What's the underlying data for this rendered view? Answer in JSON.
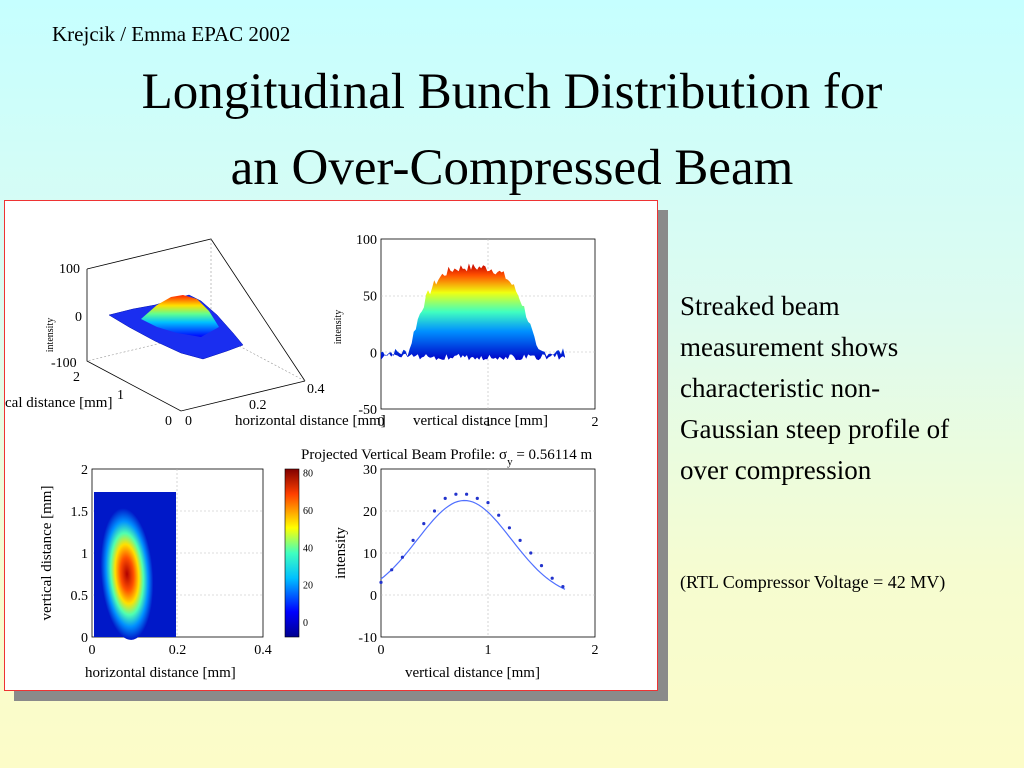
{
  "slide": {
    "author": "Krejcik / Emma   EPAC 2002",
    "title_line1": "Longitudinal Bunch Distribution for",
    "title_line2": "an Over-Compressed Beam",
    "description_lines": [
      "Streaked beam",
      "measurement shows",
      "characteristic non-",
      "Gaussian steep profile of",
      "over compression"
    ],
    "note": "(RTL Compressor Voltage = 42 MV)"
  },
  "colors": {
    "accent_frame": "#e33333",
    "plot_blue": "#2233cc"
  },
  "chart_data": [
    {
      "type": "surface",
      "zlabel": "intensity",
      "xlabel": "horizontal distance [mm]",
      "ylabel": "vertical distance [mm]",
      "xlabel_visible": "horizontal distance [mm]",
      "ylabel_visible": "cal distance [mm]",
      "zticks": [
        "100",
        "0",
        "-100"
      ],
      "yticks": [
        "2",
        "1",
        "0"
      ],
      "xticks": [
        "0",
        "0.2",
        "0.4"
      ],
      "zlim": [
        -100,
        100
      ]
    },
    {
      "type": "area",
      "ylabel": "intensity",
      "xlabel": "vertical distance [mm]",
      "xticks": [
        "0",
        "1",
        "2"
      ],
      "yticks": [
        "100",
        "50",
        "0",
        "-50"
      ],
      "xlim": [
        0,
        2
      ],
      "ylim": [
        -50,
        100
      ],
      "peak": 75
    },
    {
      "type": "heatmap",
      "xlabel": "horizontal distance [mm]",
      "ylabel": "vertical distance [mm]",
      "xticks": [
        "0",
        "0.2",
        "0.4"
      ],
      "yticks": [
        "2",
        "1.5",
        "1",
        "0.5",
        "0"
      ],
      "xlim": [
        0,
        0.4
      ],
      "ylim": [
        0,
        2
      ],
      "colorbar_ticks": [
        "80",
        "60",
        "40",
        "20",
        "0"
      ]
    },
    {
      "type": "scatter",
      "title": "Projected Vertical Beam Profile: σ",
      "title_sub": "y",
      "title_tail": " = 0.56114 m",
      "xlabel": "vertical distance [mm]",
      "ylabel": "intensity",
      "xticks": [
        "0",
        "1",
        "2"
      ],
      "yticks": [
        "30",
        "20",
        "10",
        "0",
        "-10"
      ],
      "xlim": [
        0,
        2
      ],
      "ylim": [
        -10,
        30
      ],
      "x": [
        0.0,
        0.1,
        0.2,
        0.3,
        0.4,
        0.5,
        0.6,
        0.7,
        0.8,
        0.9,
        1.0,
        1.1,
        1.2,
        1.3,
        1.4,
        1.5,
        1.6,
        1.7
      ],
      "y": [
        3,
        6,
        9,
        13,
        17,
        20,
        23,
        24,
        24,
        23,
        22,
        19,
        16,
        13,
        10,
        7,
        4,
        2
      ]
    }
  ]
}
